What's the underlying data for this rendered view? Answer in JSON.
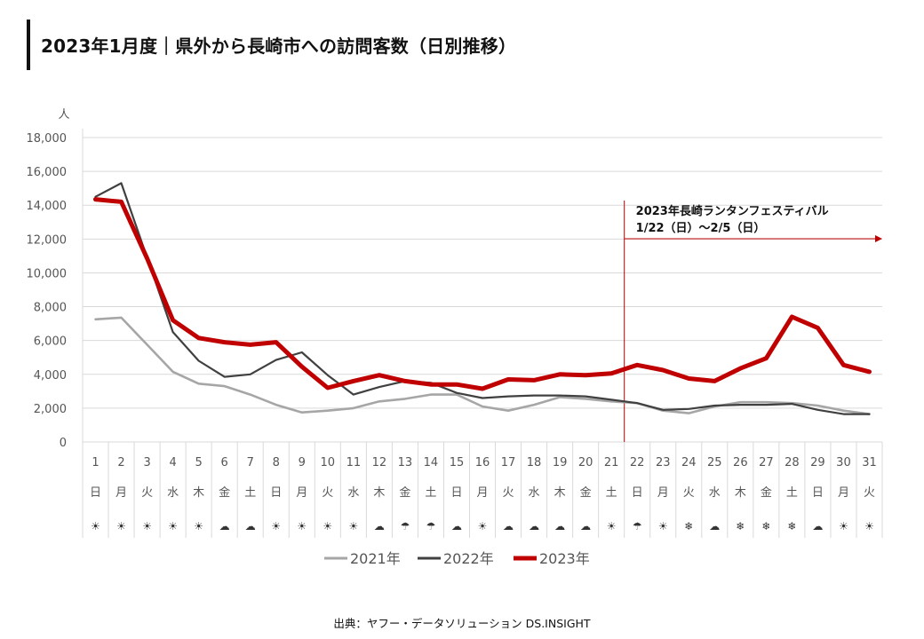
{
  "title": "2023年1月度｜県外から長崎市への訪問客数（日別推移）",
  "source": "出典：ヤフー・データソリューション DS.INSIGHT",
  "colors": {
    "s2021": "#a6a6a6",
    "s2022": "#404040",
    "s2023": "#c00000",
    "annotation": "#c00000"
  },
  "chart_data": {
    "type": "line",
    "ylabel": "人",
    "ylim": [
      0,
      18000
    ],
    "yticks": [
      "0",
      "2,000",
      "4,000",
      "6,000",
      "8,000",
      "10,000",
      "12,000",
      "14,000",
      "16,000",
      "18,000"
    ],
    "grid": true,
    "legend_position": "bottom",
    "categories": [
      "1",
      "2",
      "3",
      "4",
      "5",
      "6",
      "7",
      "8",
      "9",
      "10",
      "11",
      "12",
      "13",
      "14",
      "15",
      "16",
      "17",
      "18",
      "19",
      "20",
      "21",
      "22",
      "23",
      "24",
      "25",
      "26",
      "27",
      "28",
      "29",
      "30",
      "31"
    ],
    "weekdays": [
      "日",
      "月",
      "火",
      "水",
      "木",
      "金",
      "土",
      "日",
      "月",
      "火",
      "水",
      "木",
      "金",
      "土",
      "日",
      "月",
      "火",
      "水",
      "木",
      "金",
      "土",
      "日",
      "月",
      "火",
      "水",
      "木",
      "金",
      "土",
      "日",
      "月",
      "火"
    ],
    "weather": [
      "sunny",
      "sunny",
      "sunny",
      "sunny",
      "sunny",
      "cloudy",
      "cloudy",
      "sunny",
      "sunny",
      "sunny",
      "sunny",
      "cloudy",
      "rain",
      "rain",
      "cloudy",
      "sunny",
      "cloudy",
      "cloudy",
      "cloudy",
      "cloudy",
      "sunny",
      "rain",
      "sunny",
      "snow",
      "cloudy",
      "snow",
      "snow",
      "snow",
      "cloudy",
      "sunny",
      "sunny"
    ],
    "series": [
      {
        "name": "2021年",
        "values": [
          7250,
          7350,
          5750,
          4150,
          3450,
          3300,
          2800,
          2200,
          1750,
          1850,
          2000,
          2400,
          2550,
          2800,
          2800,
          2100,
          1850,
          2200,
          2650,
          2550,
          2400,
          2300,
          1850,
          1700,
          2100,
          2350,
          2350,
          2300,
          2150,
          1850,
          1650
        ]
      },
      {
        "name": "2022年",
        "values": [
          14500,
          15300,
          10900,
          6500,
          4800,
          3850,
          4000,
          4850,
          5300,
          3950,
          2800,
          3250,
          3600,
          3500,
          2900,
          2600,
          2700,
          2750,
          2750,
          2700,
          2500,
          2300,
          1900,
          1950,
          2150,
          2200,
          2200,
          2250,
          1900,
          1650,
          1650
        ]
      },
      {
        "name": "2023年",
        "values": [
          14350,
          14200,
          10850,
          7200,
          6150,
          5900,
          5750,
          5900,
          4450,
          3200,
          3600,
          3950,
          3600,
          3400,
          3400,
          3150,
          3700,
          3650,
          4000,
          3950,
          4050,
          4550,
          4250,
          3750,
          3600,
          4350,
          4950,
          7400,
          6750,
          4550,
          4150
        ]
      }
    ],
    "annotation": {
      "line1": "2023年長崎ランタンフェスティバル",
      "line2": "1/22（日）～2/5（日）",
      "start_day": 22
    }
  }
}
